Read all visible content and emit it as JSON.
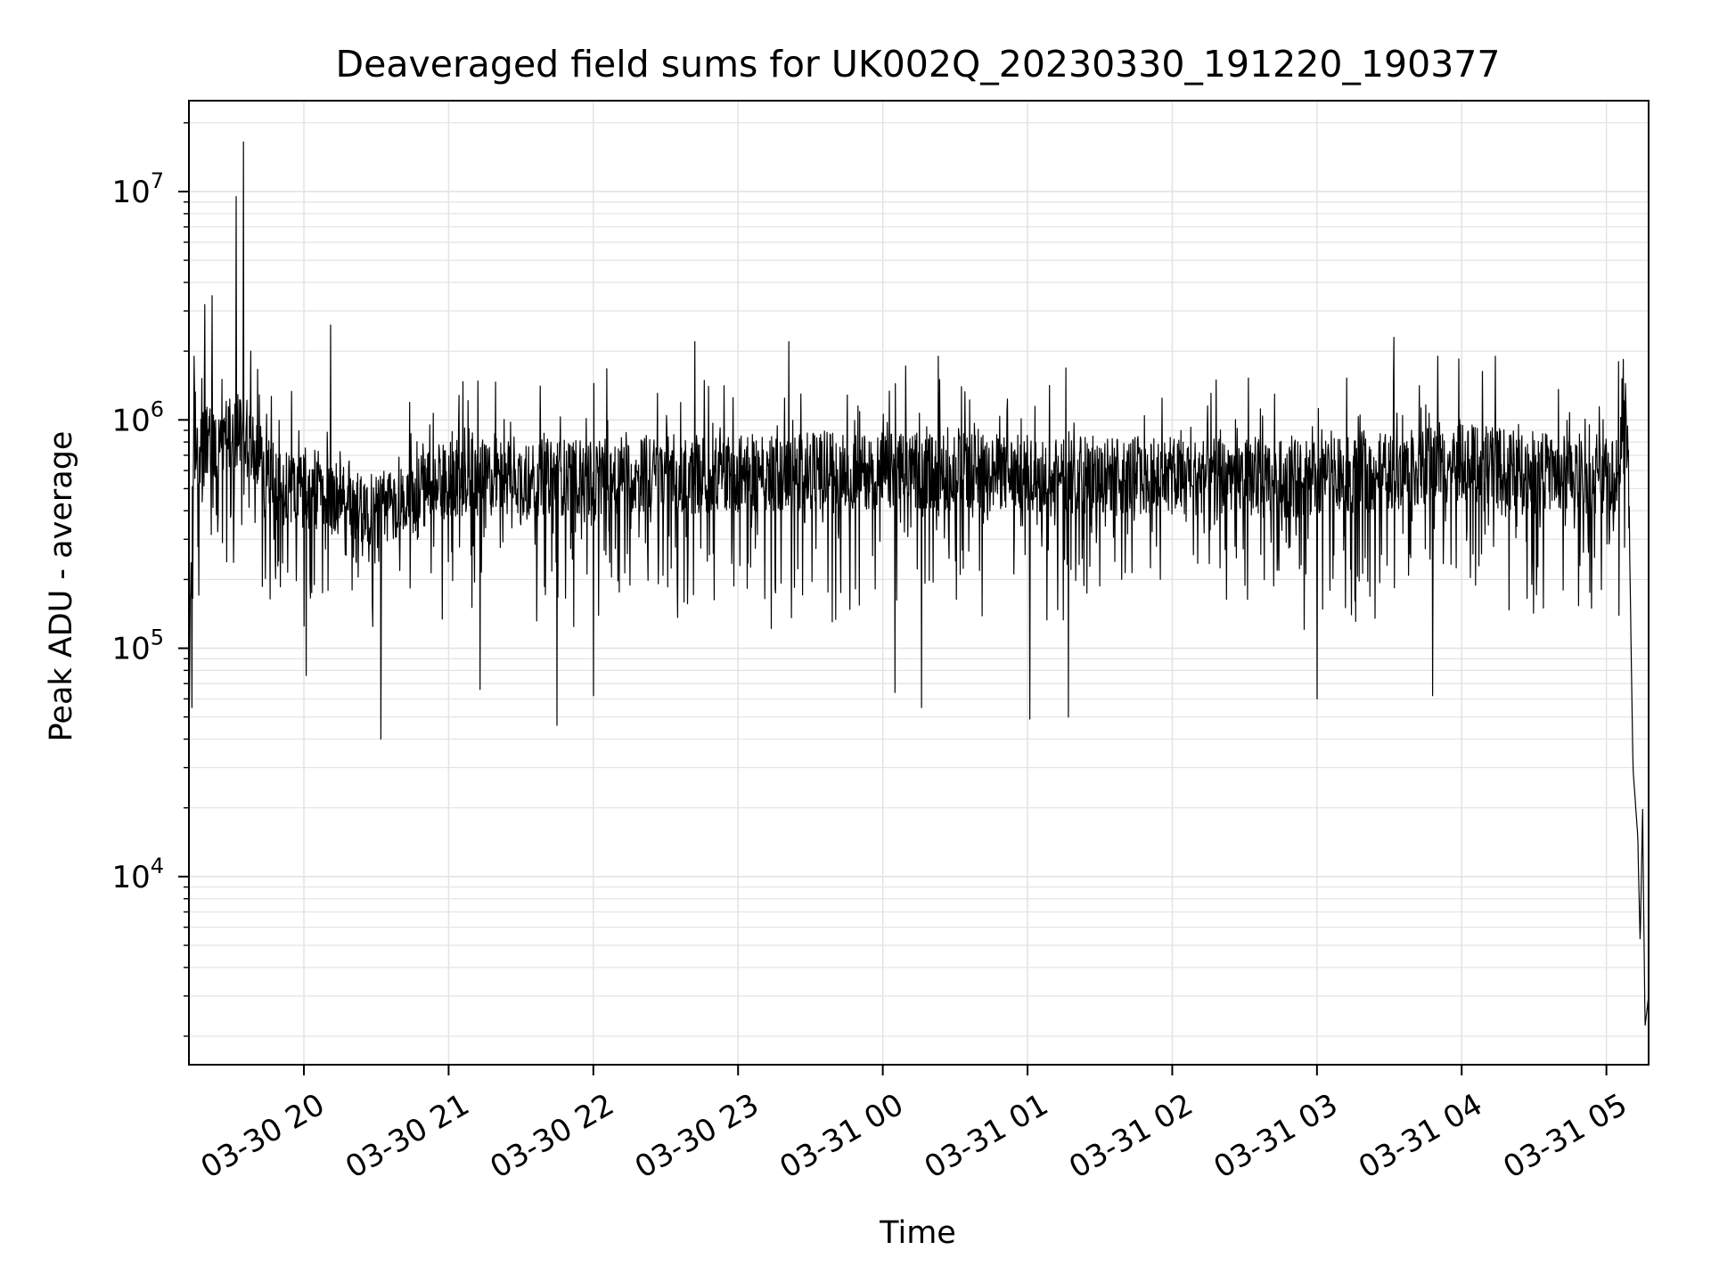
{
  "chart_data": {
    "type": "line",
    "title": "Deaveraged field sums for UK002Q_20230330_191220_190377",
    "xlabel": "Time",
    "ylabel": "Peak ADU - average",
    "yscale": "log",
    "grid": true,
    "grid_minor": true,
    "line_color": "#000000",
    "grid_color": "#e3e3e3",
    "xlim": [
      "2023-03-30 19:12:20",
      "2023-03-31 05:17:30"
    ],
    "ylim": [
      1500,
      25000000
    ],
    "x_ticks": [
      {
        "value": "2023-03-30 20:00",
        "label": "03-30 20"
      },
      {
        "value": "2023-03-30 21:00",
        "label": "03-30 21"
      },
      {
        "value": "2023-03-30 22:00",
        "label": "03-30 22"
      },
      {
        "value": "2023-03-30 23:00",
        "label": "03-30 23"
      },
      {
        "value": "2023-03-31 00:00",
        "label": "03-31 00"
      },
      {
        "value": "2023-03-31 01:00",
        "label": "03-31 01"
      },
      {
        "value": "2023-03-31 02:00",
        "label": "03-31 02"
      },
      {
        "value": "2023-03-31 03:00",
        "label": "03-31 03"
      },
      {
        "value": "2023-03-31 04:00",
        "label": "03-31 04"
      },
      {
        "value": "2023-03-31 05:00",
        "label": "03-31 05"
      }
    ],
    "y_ticks": [
      {
        "value": 10000,
        "base": "10",
        "exp": "4"
      },
      {
        "value": 100000,
        "base": "10",
        "exp": "5"
      },
      {
        "value": 1000000,
        "base": "10",
        "exp": "6"
      },
      {
        "value": 10000000,
        "base": "10",
        "exp": "7"
      }
    ],
    "baseline": [
      {
        "x": "2023-03-30 19:12:20",
        "y": 60000
      },
      {
        "x": "2023-03-30 19:14:00",
        "y": 700000
      },
      {
        "x": "2023-03-30 19:25:00",
        "y": 800000
      },
      {
        "x": "2023-03-30 19:35:00",
        "y": 900000
      },
      {
        "x": "2023-03-30 19:45:00",
        "y": 550000
      },
      {
        "x": "2023-03-30 20:30:00",
        "y": 400000
      },
      {
        "x": "2023-03-30 21:00:00",
        "y": 550000
      },
      {
        "x": "2023-03-31 00:00:00",
        "y": 600000
      },
      {
        "x": "2023-03-31 03:00:00",
        "y": 550000
      },
      {
        "x": "2023-03-31 04:00:00",
        "y": 650000
      },
      {
        "x": "2023-03-31 05:05:00",
        "y": 550000
      },
      {
        "x": "2023-03-31 05:07:00",
        "y": 1400000
      },
      {
        "x": "2023-03-31 05:09:00",
        "y": 700000
      },
      {
        "x": "2023-03-31 05:10:00",
        "y": 150000
      },
      {
        "x": "2023-03-31 05:11:00",
        "y": 30000
      },
      {
        "x": "2023-03-31 05:13:00",
        "y": 15000
      },
      {
        "x": "2023-03-31 05:14:00",
        "y": 5000
      },
      {
        "x": "2023-03-31 05:15:00",
        "y": 20000
      },
      {
        "x": "2023-03-31 05:16:00",
        "y": 2200
      },
      {
        "x": "2023-03-31 05:17:30",
        "y": 3000
      }
    ],
    "peaks": [
      {
        "x": "2023-03-30 19:14:30",
        "y": 1900000
      },
      {
        "x": "2023-03-30 19:19:00",
        "y": 3200000
      },
      {
        "x": "2023-03-30 19:22:00",
        "y": 3500000
      },
      {
        "x": "2023-03-30 19:32:00",
        "y": 9500000
      },
      {
        "x": "2023-03-30 19:35:00",
        "y": 16500000
      },
      {
        "x": "2023-03-30 19:38:00",
        "y": 2000000
      },
      {
        "x": "2023-03-30 20:11:00",
        "y": 2600000
      },
      {
        "x": "2023-03-30 22:42:00",
        "y": 2200000
      },
      {
        "x": "2023-03-30 23:21:00",
        "y": 2200000
      },
      {
        "x": "2023-03-31 00:23:00",
        "y": 1900000
      },
      {
        "x": "2023-03-31 03:32:00",
        "y": 2300000
      },
      {
        "x": "2023-03-31 03:50:00",
        "y": 1900000
      },
      {
        "x": "2023-03-31 04:14:00",
        "y": 1900000
      },
      {
        "x": "2023-03-31 05:05:00",
        "y": 1800000
      }
    ],
    "dips": [
      {
        "x": "2023-03-30 19:13:30",
        "y": 55000
      },
      {
        "x": "2023-03-30 20:01:00",
        "y": 76000
      },
      {
        "x": "2023-03-30 20:32:00",
        "y": 40000
      },
      {
        "x": "2023-03-30 21:13:00",
        "y": 66000
      },
      {
        "x": "2023-03-30 21:45:00",
        "y": 46000
      },
      {
        "x": "2023-03-30 22:00:00",
        "y": 62000
      },
      {
        "x": "2023-03-31 00:05:00",
        "y": 64000
      },
      {
        "x": "2023-03-31 00:16:00",
        "y": 55000
      },
      {
        "x": "2023-03-31 01:01:00",
        "y": 49000
      },
      {
        "x": "2023-03-31 01:17:00",
        "y": 50000
      },
      {
        "x": "2023-03-31 03:00:00",
        "y": 60000
      },
      {
        "x": "2023-03-31 03:48:00",
        "y": 62000
      }
    ]
  }
}
